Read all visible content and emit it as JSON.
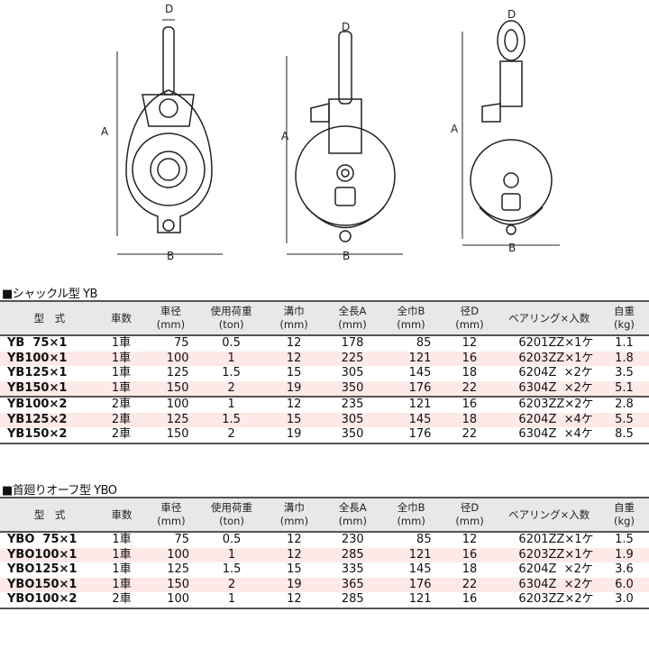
{
  "drawings": {
    "labels": {
      "A": "A",
      "B": "B",
      "D": "D"
    }
  },
  "headers": [
    "型　式",
    "車数",
    "車径\n(mm)",
    "使用荷重\n(ton)",
    "溝巾\n(mm)",
    "全長A\n(mm)",
    "全巾B\n(mm)",
    "径D\n(mm)",
    "ベアリング×入数",
    "自重\n(kg)"
  ],
  "tables": [
    {
      "title": "■シャックル型 YB",
      "rows": [
        [
          "YB  75×1",
          "1車",
          "75",
          "0.5",
          "12",
          "178",
          "85",
          "12",
          "6201ZZ×1ケ",
          "1.1"
        ],
        [
          "YB100×1",
          "1車",
          "100",
          "1",
          "12",
          "225",
          "121",
          "16",
          "6203ZZ×1ケ",
          "1.8"
        ],
        [
          "YB125×1",
          "1車",
          "125",
          "1.5",
          "15",
          "305",
          "145",
          "18",
          "6204Z  ×2ケ",
          "3.5"
        ],
        [
          "YB150×1",
          "1車",
          "150",
          "2",
          "19",
          "350",
          "176",
          "22",
          "6304Z  ×2ケ",
          "5.1"
        ],
        [
          "YB100×2",
          "2車",
          "100",
          "1",
          "12",
          "235",
          "121",
          "16",
          "6203ZZ×2ケ",
          "2.8"
        ],
        [
          "YB125×2",
          "2車",
          "125",
          "1.5",
          "15",
          "305",
          "145",
          "18",
          "6204Z  ×4ケ",
          "5.5"
        ],
        [
          "YB150×2",
          "2車",
          "150",
          "2",
          "19",
          "350",
          "176",
          "22",
          "6304Z  ×4ケ",
          "8.5"
        ]
      ]
    },
    {
      "title": "■首廻りオーフ型 YBO",
      "rows": [
        [
          "YBO  75×1",
          "1車",
          "75",
          "0.5",
          "12",
          "230",
          "85",
          "12",
          "6201ZZ×1ケ",
          "1.5"
        ],
        [
          "YBO100×1",
          "1車",
          "100",
          "1",
          "12",
          "285",
          "121",
          "16",
          "6203ZZ×1ケ",
          "1.9"
        ],
        [
          "YBO125×1",
          "1車",
          "125",
          "1.5",
          "15",
          "335",
          "145",
          "18",
          "6204Z  ×2ケ",
          "3.6"
        ],
        [
          "YBO150×1",
          "1車",
          "150",
          "2",
          "19",
          "365",
          "176",
          "22",
          "6304Z  ×2ケ",
          "6.0"
        ],
        [
          "YBO100×2",
          "2車",
          "100",
          "1",
          "12",
          "285",
          "121",
          "16",
          "6203ZZ×2ケ",
          "3.0"
        ]
      ]
    }
  ],
  "colors": {
    "pink_row": "#fde9e8",
    "header_bg": "#e9e8e6"
  }
}
